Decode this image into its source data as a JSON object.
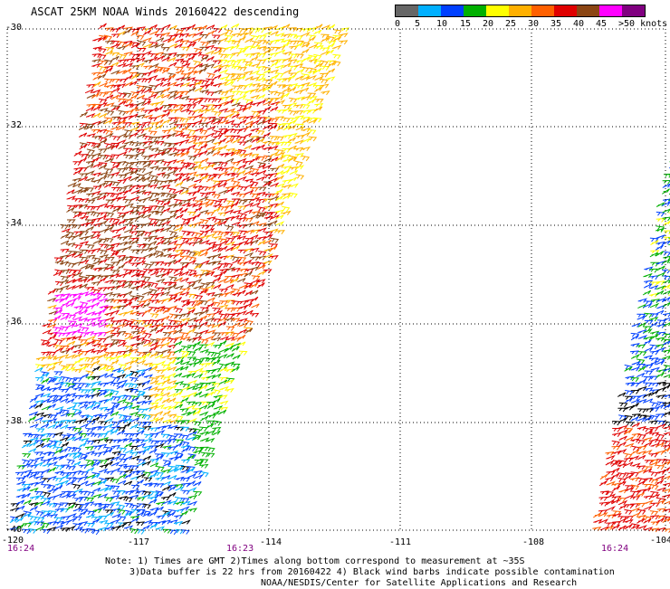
{
  "title": "ASCAT 25KM NOAA Winds 20160422 descending",
  "legend": {
    "colors": [
      "#666666",
      "#00b0ff",
      "#0040ff",
      "#00b000",
      "#ffff00",
      "#ffb000",
      "#ff6000",
      "#e00000",
      "#8b4513",
      "#ff00ff",
      "#800080"
    ],
    "labels": [
      "0",
      "5",
      "10",
      "15",
      "20",
      "25",
      "30",
      "35",
      "40",
      "45",
      ">50 knots"
    ]
  },
  "axes": {
    "lat_labels": [
      "-30",
      "-32",
      "-34",
      "-36",
      "-38",
      "-40"
    ],
    "lon_labels": [
      "-120",
      "-117",
      "-114",
      "-111",
      "-108",
      "-104"
    ]
  },
  "time_labels": [
    "16:24",
    "16:23",
    "16:24"
  ],
  "footer": {
    "line1": "Note: 1) Times are GMT 2)Times along bottom correspond to measurement at ~35S",
    "line2": "3)Data buffer is 22 hrs from 20160422 4) Black wind barbs indicate possible contamination",
    "line3": "NOAA/NESDIS/Center for Satellite Applications and Research"
  }
}
